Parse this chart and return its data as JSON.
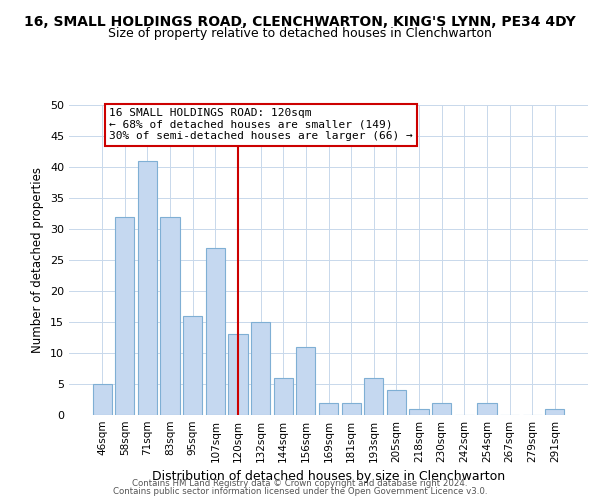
{
  "title1": "16, SMALL HOLDINGS ROAD, CLENCHWARTON, KING'S LYNN, PE34 4DY",
  "title2": "Size of property relative to detached houses in Clenchwarton",
  "xlabel": "Distribution of detached houses by size in Clenchwarton",
  "ylabel": "Number of detached properties",
  "bar_labels": [
    "46sqm",
    "58sqm",
    "71sqm",
    "83sqm",
    "95sqm",
    "107sqm",
    "120sqm",
    "132sqm",
    "144sqm",
    "156sqm",
    "169sqm",
    "181sqm",
    "193sqm",
    "205sqm",
    "218sqm",
    "230sqm",
    "242sqm",
    "254sqm",
    "267sqm",
    "279sqm",
    "291sqm"
  ],
  "bar_values": [
    5,
    32,
    41,
    32,
    16,
    27,
    13,
    15,
    6,
    11,
    2,
    2,
    6,
    4,
    1,
    2,
    0,
    2,
    0,
    0,
    1
  ],
  "bar_color": "#c5d8f0",
  "bar_edge_color": "#7fafd4",
  "vline_index": 6,
  "vline_color": "#cc0000",
  "annotation_line1": "16 SMALL HOLDINGS ROAD: 120sqm",
  "annotation_line2": "← 68% of detached houses are smaller (149)",
  "annotation_line3": "30% of semi-detached houses are larger (66) →",
  "annotation_box_color": "#ffffff",
  "annotation_box_edge": "#cc0000",
  "ylim": [
    0,
    50
  ],
  "yticks": [
    0,
    5,
    10,
    15,
    20,
    25,
    30,
    35,
    40,
    45,
    50
  ],
  "footer1": "Contains HM Land Registry data © Crown copyright and database right 2024.",
  "footer2": "Contains public sector information licensed under the Open Government Licence v3.0.",
  "background_color": "#ffffff",
  "grid_color": "#c8d8eb"
}
